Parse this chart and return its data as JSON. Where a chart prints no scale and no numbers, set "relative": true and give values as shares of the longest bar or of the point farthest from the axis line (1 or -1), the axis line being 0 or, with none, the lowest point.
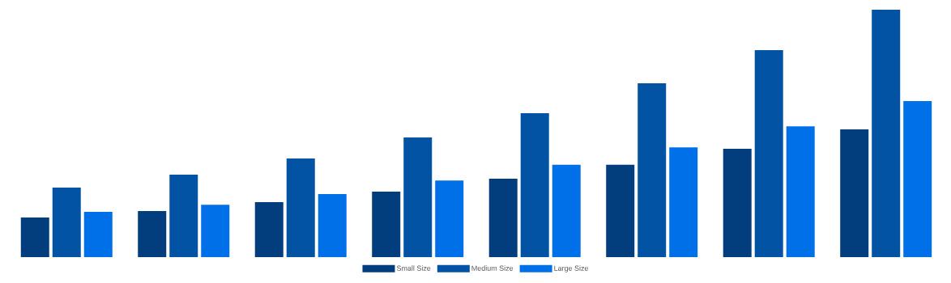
{
  "chart_data": {
    "type": "bar",
    "relative": true,
    "legend": "bottom",
    "categories": [
      null,
      null,
      null,
      null,
      null,
      null,
      null,
      null
    ],
    "series": [
      {
        "name": "Small Size",
        "color": "#023e7d",
        "values": [
          0.16,
          0.186,
          0.222,
          0.265,
          0.317,
          0.373,
          0.438,
          0.516
        ]
      },
      {
        "name": "Medium Size",
        "color": "#0353a4",
        "values": [
          0.281,
          0.333,
          0.399,
          0.484,
          0.582,
          0.703,
          0.837,
          1
        ]
      },
      {
        "name": "Large Size",
        "color": "#0070e8",
        "values": [
          0.183,
          0.212,
          0.255,
          0.31,
          0.373,
          0.444,
          0.529,
          0.631
        ]
      }
    ]
  }
}
